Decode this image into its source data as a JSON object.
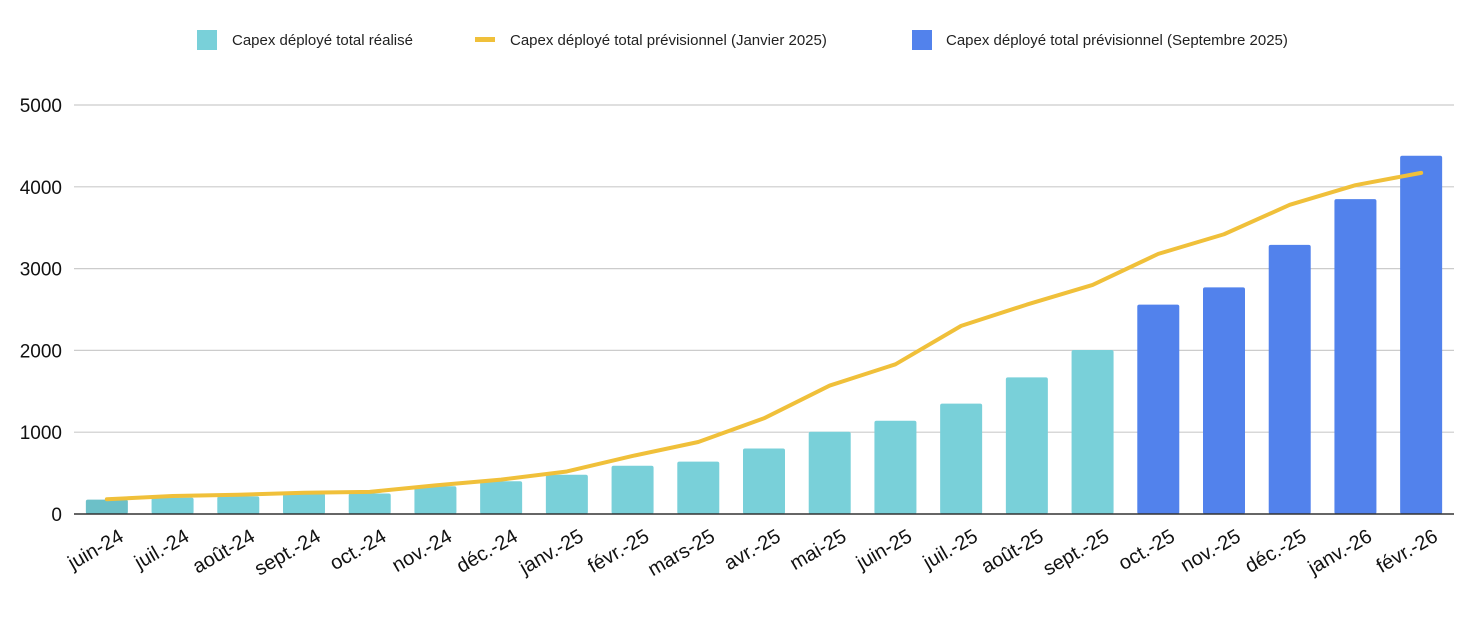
{
  "chart_data": {
    "type": "bar",
    "categories": [
      "juin-24",
      "juil.-24",
      "août-24",
      "sept.-24",
      "oct.-24",
      "nov.-24",
      "déc.-24",
      "janv.-25",
      "févr.-25",
      "mars-25",
      "avr.-25",
      "mai-25",
      "juin-25",
      "juil.-25",
      "août-25",
      "sept.-25",
      "oct.-25",
      "nov.-25",
      "déc.-25",
      "janv.-26",
      "févr.-26"
    ],
    "series": [
      {
        "name": "Capex déployé total réalisé",
        "kind": "bar",
        "color": "#79D0D9",
        "values": [
          175,
          200,
          215,
          250,
          250,
          340,
          400,
          480,
          590,
          640,
          800,
          1005,
          1140,
          1350,
          1670,
          2005,
          null,
          null,
          null,
          null,
          null
        ]
      },
      {
        "name": "Capex déployé total prévisionnel (Janvier 2025)",
        "kind": "line",
        "color": "#F0C03A",
        "values": [
          180,
          220,
          235,
          260,
          270,
          350,
          420,
          520,
          710,
          880,
          1170,
          1570,
          1830,
          2300,
          2560,
          2800,
          3180,
          3420,
          3780,
          4020,
          4170
        ]
      },
      {
        "name": "Capex déployé total prévisionnel (Septembre 2025)",
        "kind": "bar",
        "color": "#5282EC",
        "values": [
          null,
          null,
          null,
          null,
          null,
          null,
          null,
          null,
          null,
          null,
          null,
          null,
          null,
          null,
          null,
          null,
          2560,
          2770,
          3290,
          3850,
          4380
        ]
      }
    ],
    "y_ticks": [
      "0",
      "1000",
      "2000",
      "3000",
      "4000",
      "5000"
    ],
    "ylim": [
      0,
      5000
    ],
    "grid": true,
    "legend_position": "top-center",
    "first_bar_color": "#6CC0C8"
  }
}
